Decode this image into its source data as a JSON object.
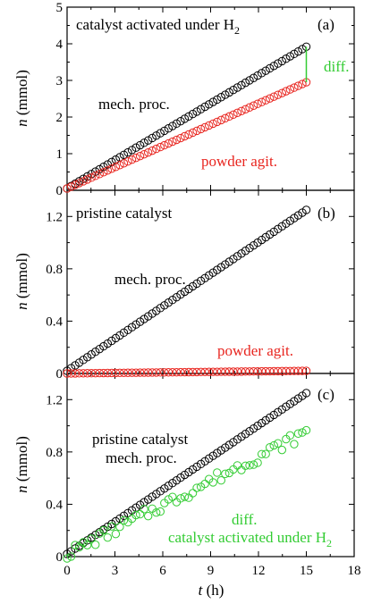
{
  "chart_data": [
    {
      "panel_label": "(a)",
      "type": "scatter",
      "title": "catalyst activated under H",
      "title_sub": "2",
      "ylabel": "n",
      "ylabel_unit": "(mmol)",
      "xlim": [
        0,
        18
      ],
      "ylim": [
        0,
        5
      ],
      "yticks": [
        0,
        1,
        2,
        3,
        4,
        5
      ],
      "series": [
        {
          "name": "mech. proc.",
          "color": "#000000",
          "x0": 0,
          "x1": 15,
          "y0": 0.05,
          "y1": 3.92,
          "n": 60,
          "noise": 0.0
        },
        {
          "name": "powder agit.",
          "color": "#e8251f",
          "x0": 0,
          "x1": 15,
          "y0": 0.05,
          "y1": 2.95,
          "n": 60,
          "noise": 0.0
        }
      ],
      "annotations": [
        {
          "text": "mech. proc.",
          "color": "#000000"
        },
        {
          "text": "powder agit.",
          "color": "#e8251f"
        },
        {
          "text": "diff.",
          "color": "#33cc33"
        }
      ],
      "diff_bar": {
        "x": 15,
        "y_low": 2.95,
        "y_high": 3.92,
        "color": "#33cc33"
      }
    },
    {
      "panel_label": "(b)",
      "type": "scatter",
      "title": "pristine catalyst",
      "ylabel": "n",
      "ylabel_unit": "(mmol)",
      "xlim": [
        0,
        18
      ],
      "ylim": [
        0,
        1.4
      ],
      "yticks": [
        0.0,
        0.4,
        0.8,
        1.2
      ],
      "series": [
        {
          "name": "mech. proc.",
          "color": "#000000",
          "x0": 0,
          "x1": 15,
          "y0": 0.02,
          "y1": 1.25,
          "n": 60,
          "noise": 0.0
        },
        {
          "name": "powder agit.",
          "color": "#e8251f",
          "x0": 0,
          "x1": 15,
          "y0": 0.0,
          "y1": 0.02,
          "n": 60,
          "noise": 0.0
        }
      ],
      "annotations": [
        {
          "text": "mech. proc.",
          "color": "#000000"
        },
        {
          "text": "powder agit.",
          "color": "#e8251f"
        }
      ]
    },
    {
      "panel_label": "(c)",
      "type": "scatter",
      "ylabel": "n",
      "ylabel_unit": "(mmol)",
      "xlabel": "t",
      "xlabel_unit": "(h)",
      "xlim": [
        0,
        18
      ],
      "ylim": [
        0,
        1.4
      ],
      "yticks": [
        0.0,
        0.4,
        0.8,
        1.2
      ],
      "xticks": [
        0,
        3,
        6,
        9,
        12,
        15,
        18
      ],
      "series": [
        {
          "name": "pristine catalyst mech. proc.",
          "color": "#000000",
          "x0": 0,
          "x1": 15,
          "y0": 0.02,
          "y1": 1.25,
          "n": 60,
          "noise": 0.0
        },
        {
          "name": "diff. catalyst activated under H2",
          "color": "#33cc33",
          "x0": 0,
          "x1": 15,
          "y0": 0.02,
          "y1": 0.95,
          "n": 60,
          "noise": 0.045
        }
      ],
      "annotations": [
        {
          "text": "pristine catalyst",
          "color": "#000000"
        },
        {
          "text": "mech. proc.",
          "color": "#000000"
        },
        {
          "text": "diff.",
          "color": "#33cc33"
        },
        {
          "text": "catalyst activated under H",
          "sub": "2",
          "color": "#33cc33"
        }
      ]
    }
  ]
}
